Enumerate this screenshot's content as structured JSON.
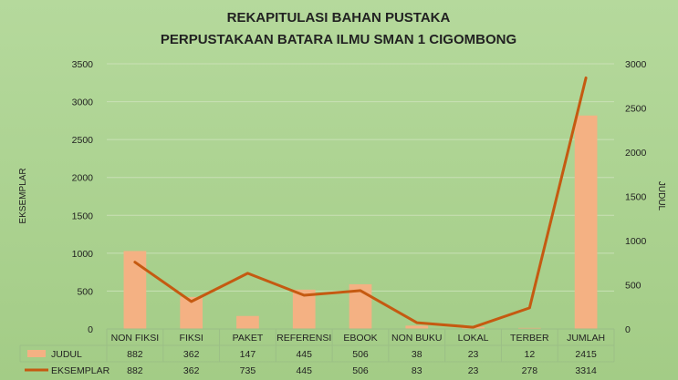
{
  "chart_data": {
    "type": "bar",
    "title": "REKAPITULASI BAHAN PUSTAKA",
    "subtitle": "PERPUSTAKAAN BATARA ILMU SMAN 1 CIGOMBONG",
    "categories": [
      "NON FIKSI",
      "FIKSI",
      "PAKET",
      "REFERENSI",
      "EBOOK",
      "NON BUKU",
      "LOKAL",
      "TERBER",
      "JUMLAH"
    ],
    "series": [
      {
        "name": "JUDUL",
        "type": "bar",
        "axis": "right",
        "color": "#f4b183",
        "values": [
          882,
          362,
          147,
          445,
          506,
          38,
          23,
          12,
          2415
        ]
      },
      {
        "name": "EKSEMPLAR",
        "type": "line",
        "axis": "left",
        "color": "#c55a11",
        "values": [
          882,
          362,
          735,
          445,
          506,
          83,
          23,
          278,
          3314
        ]
      }
    ],
    "ylabel": "EKSEMPLAR",
    "y2label": "JUDUL",
    "ylim": [
      0,
      3500
    ],
    "y2lim": [
      0,
      3000
    ],
    "yticks": [
      0,
      500,
      1000,
      1500,
      2000,
      2500,
      3000,
      3500
    ],
    "y2ticks": [
      0,
      500,
      1000,
      1500,
      2000,
      2500,
      3000
    ],
    "grid": true,
    "legend": "data-table-below"
  }
}
